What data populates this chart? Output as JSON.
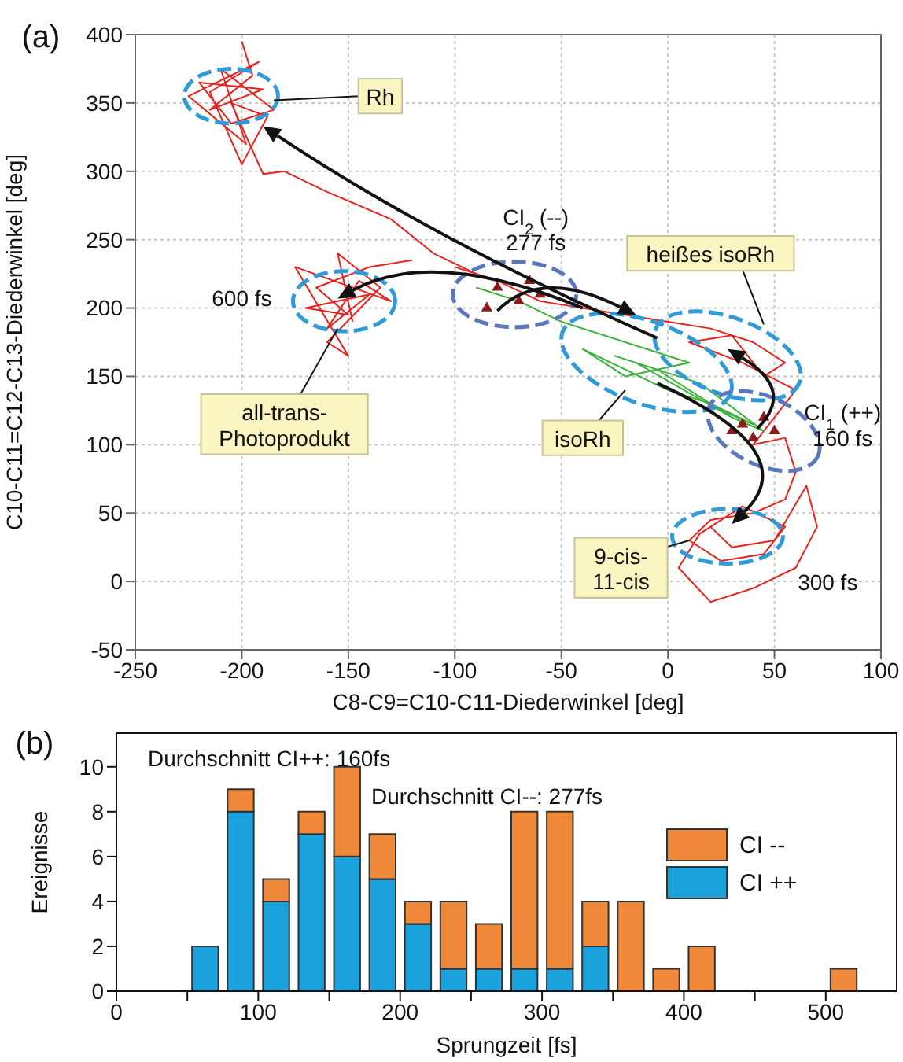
{
  "chart_data": [
    {
      "type": "line",
      "xlabel": "C8-C9=C10-C11-Diederwinkel [deg]",
      "ylabel": "C10-C11=C12-C13-Diederwinkel [deg]",
      "xlim": [
        -250,
        100
      ],
      "ylim": [
        -50,
        400
      ],
      "xticks": [
        -250,
        -200,
        -150,
        -100,
        -50,
        0,
        50,
        100
      ],
      "yticks": [
        -50,
        0,
        50,
        100,
        150,
        200,
        250,
        300,
        350,
        400
      ],
      "grid": true,
      "series": [
        {
          "color": "#e8231f",
          "x": [
            -200,
            -195,
            -215,
            -190,
            -220,
            -205,
            -185,
            -210,
            -198,
            -225,
            -192,
            -215,
            -200,
            -188,
            -205,
            -190,
            -180,
            -160,
            -130,
            -110,
            -90
          ],
          "values": [
            395,
            370,
            345,
            360,
            365,
            335,
            345,
            375,
            320,
            355,
            380,
            358,
            305,
            340,
            350,
            298,
            300,
            285,
            265,
            240,
            225
          ]
        },
        {
          "color": "#e8231f",
          "x": [
            -120,
            -140,
            -165,
            -150,
            -170,
            -140,
            -160,
            -145,
            -130,
            -175,
            -150,
            -160,
            -135,
            -155,
            -148
          ],
          "values": [
            235,
            230,
            215,
            195,
            200,
            210,
            185,
            220,
            205,
            230,
            165,
            175,
            215,
            240,
            190
          ]
        },
        {
          "color": "#e8231f",
          "x": [
            -100,
            -80,
            -60,
            -40,
            -20,
            0,
            20,
            40,
            55,
            45,
            30,
            10,
            35,
            60,
            50,
            40,
            55,
            60,
            55,
            40,
            20,
            10,
            25,
            45,
            55,
            35,
            15,
            5,
            20,
            40,
            60,
            70,
            65,
            50,
            30,
            20
          ],
          "values": [
            230,
            220,
            205,
            200,
            195,
            190,
            185,
            175,
            160,
            150,
            180,
            175,
            160,
            140,
            120,
            100,
            105,
            80,
            60,
            50,
            45,
            30,
            15,
            20,
            40,
            55,
            35,
            10,
            -15,
            -5,
            10,
            40,
            70,
            30,
            25,
            40
          ]
        },
        {
          "color": "#3db33d",
          "x": [
            -90,
            -70,
            -50,
            -30,
            -10,
            10,
            -20,
            -40,
            0,
            20,
            40,
            25,
            -5,
            -25,
            15,
            45,
            30,
            -15
          ],
          "values": [
            215,
            205,
            190,
            180,
            170,
            160,
            150,
            170,
            140,
            130,
            115,
            125,
            155,
            165,
            145,
            110,
            120,
            160
          ]
        },
        {
          "type": "scatter",
          "marker": "triangle",
          "color": "#8b1a1a",
          "x": [
            -80,
            -70,
            -60,
            -85,
            -65,
            35,
            40,
            50,
            45,
            30
          ],
          "values": [
            215,
            205,
            210,
            200,
            220,
            115,
            105,
            110,
            120,
            110
          ]
        }
      ],
      "annotations": [
        "(a)",
        "Rh",
        "CI$_{2}$ (--)\n277 fs",
        "heißes isoRh",
        "600 fs",
        {
          "text": "all-trans-\nPhotoprodukt",
          "x": -155,
          "y": 185
        },
        "isoRh",
        "CI$_{1}$ (++)\n160 fs",
        "9-cis-\n11-cis",
        "300 fs"
      ]
    },
    {
      "type": "bar",
      "xlabel": "Sprungzeit [fs]",
      "ylabel": "Ereignisse",
      "stacked": true,
      "legend": "right",
      "xlim": [
        0,
        550
      ],
      "ylim": [
        0,
        11.5
      ],
      "xticks": [
        0,
        {
          "value": 50,
          "label": null
        },
        100,
        {
          "value": 150,
          "label": null
        },
        200,
        {
          "value": 250,
          "label": null
        },
        300,
        {
          "value": 350,
          "label": null
        },
        400,
        {
          "value": 450,
          "label": null
        },
        500
      ],
      "yticks": [
        0,
        2,
        4,
        6,
        8,
        10
      ],
      "x": [
        62.5,
        87.5,
        112.5,
        137.5,
        162.5,
        187.5,
        212.5,
        237.5,
        262.5,
        287.5,
        312.5,
        337.5,
        362.5,
        387.5,
        412.5,
        437.5,
        462.5,
        487.5,
        512.5
      ],
      "series": [
        {
          "name": "CI ++",
          "color": "#1ba1dc",
          "values": [
            2,
            8,
            4,
            7,
            6,
            5,
            3,
            1,
            1,
            1,
            1,
            2,
            0,
            0,
            0,
            0,
            0,
            0,
            0
          ]
        },
        {
          "name": "CI --",
          "color": "#f0883a",
          "values": [
            0,
            1,
            1,
            1,
            4,
            2,
            1,
            3,
            2,
            7,
            7,
            2,
            4,
            1,
            2,
            0,
            0,
            0,
            1
          ]
        }
      ],
      "annotations": [
        "(b)",
        "Durchschnitt CI++: 160fs",
        "Durchschnitt CI--: 277fs"
      ]
    }
  ]
}
